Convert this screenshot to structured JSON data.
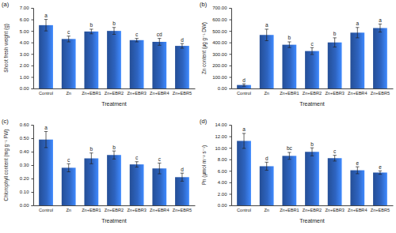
{
  "chart_data": [
    {
      "type": "bar",
      "title": "(a)",
      "x_label": "Treatment",
      "y_label": "Shoot fresh weight (g)",
      "categories": [
        "Control",
        "Zn",
        "Zn+EBR1",
        "Zn+EBR2",
        "Zn+EBR3",
        "Zn+EBR4",
        "Zn+EBR5"
      ],
      "values": [
        5.5,
        4.3,
        4.95,
        5.0,
        4.2,
        4.05,
        3.7
      ],
      "errors": [
        0.5,
        0.25,
        0.2,
        0.3,
        0.15,
        0.3,
        0.2
      ],
      "letters": [
        "a",
        "c",
        "b",
        "b",
        "c",
        "cd",
        "d"
      ],
      "color": "#2e64c0",
      "grid": false,
      "ylim": [
        0,
        7
      ],
      "yticks": [
        {
          "value": 0,
          "label": "0.00"
        },
        {
          "value": 1,
          "label": "1.00"
        },
        {
          "value": 2,
          "label": "2.00"
        },
        {
          "value": 3,
          "label": "3.00"
        },
        {
          "value": 4,
          "label": "4.00"
        },
        {
          "value": 5,
          "label": "5.00"
        },
        {
          "value": 6,
          "label": "6.00"
        },
        {
          "value": 7,
          "label": "7.00"
        }
      ]
    },
    {
      "type": "bar",
      "title": "(b)",
      "x_label": "Treatment",
      "y_label": "Zn content (μg g⁻¹ DW)",
      "categories": [
        "Control",
        "Zn",
        "Zn+EBR1",
        "Zn+EBR2",
        "Zn+EBR3",
        "Zn+EBR4",
        "Zn+EBR5"
      ],
      "values": [
        30,
        465,
        380,
        325,
        400,
        485,
        525
      ],
      "errors": [
        10,
        50,
        25,
        30,
        40,
        45,
        35
      ],
      "letters": [
        "d",
        "a",
        "b",
        "c",
        "b",
        "a",
        "a"
      ],
      "color": "#2e64c0",
      "grid": false,
      "ylim": [
        0,
        700
      ],
      "yticks": [
        {
          "value": 0,
          "label": "0.00"
        },
        {
          "value": 100,
          "label": "100.00"
        },
        {
          "value": 200,
          "label": "200.00"
        },
        {
          "value": 300,
          "label": "300.00"
        },
        {
          "value": 400,
          "label": "400.00"
        },
        {
          "value": 500,
          "label": "500.00"
        },
        {
          "value": 600,
          "label": "600.00"
        },
        {
          "value": 700,
          "label": "700.00"
        }
      ]
    },
    {
      "type": "bar",
      "title": "(c)",
      "x_label": "Treatment",
      "y_label": "Chlorophyll content (mg g⁻¹ FW)",
      "categories": [
        "Control",
        "Zn",
        "Zn+EBR1",
        "Zn+EBR2",
        "Zn+EBR3",
        "Zn+EBR4",
        "Zn+EBR5"
      ],
      "values": [
        0.49,
        0.28,
        0.35,
        0.375,
        0.305,
        0.275,
        0.21
      ],
      "errors": [
        0.06,
        0.03,
        0.04,
        0.03,
        0.02,
        0.04,
        0.03
      ],
      "letters": [
        "a",
        "c",
        "b",
        "b",
        "c",
        "c",
        "d"
      ],
      "color": "#2e64c0",
      "grid": false,
      "ylim": [
        0,
        0.6
      ],
      "yticks": [
        {
          "value": 0,
          "label": "0.00"
        },
        {
          "value": 0.1,
          "label": "0.10"
        },
        {
          "value": 0.2,
          "label": "0.20"
        },
        {
          "value": 0.3,
          "label": "0.30"
        },
        {
          "value": 0.4,
          "label": "0.40"
        },
        {
          "value": 0.5,
          "label": "0.50"
        },
        {
          "value": 0.6,
          "label": "0.60"
        }
      ]
    },
    {
      "type": "bar",
      "title": "(d)",
      "x_label": "Treatment",
      "y_label": "Pn (μmol m⁻² s⁻¹)",
      "categories": [
        "Control",
        "Zn",
        "Zn+EBR1",
        "Zn+EBR2",
        "Zn+EBR3",
        "Zn+EBR4",
        "Zn+EBR5"
      ],
      "values": [
        11.2,
        6.8,
        8.6,
        9.3,
        8.2,
        6.1,
        5.7
      ],
      "errors": [
        1.3,
        0.7,
        0.6,
        0.7,
        0.5,
        0.6,
        0.3
      ],
      "letters": [
        "a",
        "d",
        "bc",
        "b",
        "c",
        "e",
        "e"
      ],
      "color": "#2e64c0",
      "grid": false,
      "ylim": [
        0,
        14
      ],
      "yticks": [
        {
          "value": 0,
          "label": "0.00"
        },
        {
          "value": 2,
          "label": "2.00"
        },
        {
          "value": 4,
          "label": "4.00"
        },
        {
          "value": 6,
          "label": "6.00"
        },
        {
          "value": 8,
          "label": "8.00"
        },
        {
          "value": 10,
          "label": "10.00"
        },
        {
          "value": 12,
          "label": "12.00"
        },
        {
          "value": 14,
          "label": "14.00"
        }
      ]
    }
  ]
}
